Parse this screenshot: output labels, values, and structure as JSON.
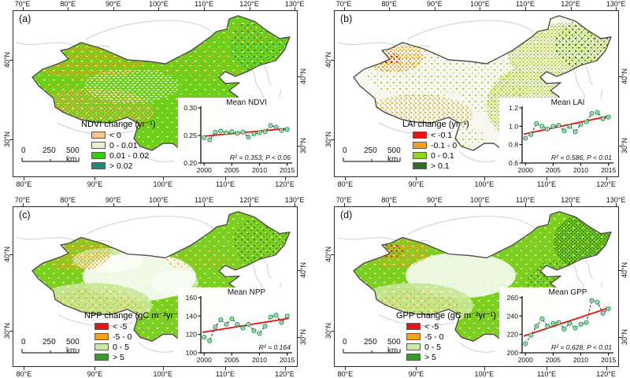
{
  "axes": {
    "top_labels": [
      "70°E",
      "80°E",
      "90°E",
      "100°E",
      "110°E",
      "120°E",
      "130°E"
    ],
    "bottom_labels": [
      "80°E",
      "90°E",
      "100°E",
      "110°E",
      "120°E"
    ],
    "left_labels": [
      "40°N",
      "30°N"
    ],
    "right_labels": [
      "40°N",
      "30°N"
    ]
  },
  "panels": [
    {
      "id": "a",
      "label": "(a)",
      "legend_title": "NDVI change (yr⁻¹)",
      "legend_items": [
        {
          "label": "< 0",
          "color": "#F4C58E"
        },
        {
          "label": "0 - 0.01",
          "color": "#EAF1CC"
        },
        {
          "label": "0.01 - 0.02",
          "color": "#3ECC12"
        },
        {
          "label": "> 0.02",
          "color": "#1B8C74"
        }
      ],
      "scalebar_labels": [
        "0",
        "250",
        "500 km"
      ]
    },
    {
      "id": "b",
      "label": "(b)",
      "legend_title": "LAI change (yr⁻¹)",
      "legend_items": [
        {
          "label": "< -0.1",
          "color": "#EE1111"
        },
        {
          "label": "-0.1 - 0",
          "color": "#F5A01B"
        },
        {
          "label": "0 - 0.1",
          "color": "#8FD622"
        },
        {
          "label": "> 0.1",
          "color": "#2F6E22"
        }
      ],
      "scalebar_labels": [
        "0",
        "250",
        "500 km"
      ]
    },
    {
      "id": "c",
      "label": "(c)",
      "legend_title": "NPP change (gC m⁻²yr⁻¹)",
      "legend_items": [
        {
          "label": "< -5",
          "color": "#EE1111"
        },
        {
          "label": "-5 - 0",
          "color": "#F5A01B"
        },
        {
          "label": "0 - 5",
          "color": "#CDEBA2"
        },
        {
          "label": "> 5",
          "color": "#3B9A2E"
        }
      ],
      "scalebar_labels": [
        "0",
        "250",
        "500 km"
      ]
    },
    {
      "id": "d",
      "label": "(d)",
      "legend_title": "GPP change (gC m⁻²yr⁻¹)",
      "legend_items": [
        {
          "label": "< -5",
          "color": "#EE1111"
        },
        {
          "label": "-5 - 0",
          "color": "#F5A01B"
        },
        {
          "label": "0 - 5",
          "color": "#CDEBA2"
        },
        {
          "label": "> 5",
          "color": "#3B9A2E"
        }
      ],
      "scalebar_labels": [
        "0",
        "250",
        "500 km"
      ]
    }
  ],
  "chart_data": [
    {
      "panel": "a",
      "type": "line",
      "title": "Mean NDVI",
      "x": [
        2000,
        2001,
        2002,
        2003,
        2004,
        2005,
        2006,
        2007,
        2008,
        2009,
        2010,
        2011,
        2012,
        2013,
        2014,
        2015
      ],
      "series": [
        {
          "name": "Mean NDVI",
          "values": [
            0.246,
            0.242,
            0.256,
            0.258,
            0.255,
            0.257,
            0.254,
            0.256,
            0.247,
            0.253,
            0.255,
            0.257,
            0.268,
            0.265,
            0.259,
            0.261
          ]
        }
      ],
      "annotation": "R² = 0.353, P < 0.05",
      "ylim": [
        0.2,
        0.3
      ],
      "yticks": [
        "0.20",
        "0.25",
        "0.30"
      ],
      "xticks": [
        2000,
        2005,
        2010,
        2015
      ],
      "trend": "linear",
      "trend_color": "#E8100C",
      "marker_color": "#1DA750",
      "grid": false,
      "legend_position": "none"
    },
    {
      "panel": "b",
      "type": "line",
      "title": "Mean LAI",
      "x": [
        2000,
        2001,
        2002,
        2003,
        2004,
        2005,
        2006,
        2007,
        2008,
        2009,
        2010,
        2011,
        2012,
        2013,
        2014,
        2015
      ],
      "series": [
        {
          "name": "Mean LAI",
          "values": [
            0.87,
            0.91,
            1.03,
            1.0,
            0.97,
            1.0,
            1.01,
            0.95,
            1.0,
            0.94,
            1.02,
            1.05,
            1.14,
            1.15,
            1.08,
            1.1
          ]
        }
      ],
      "annotation": "R² = 0.586, P < 0.01",
      "ylim": [
        0.6,
        1.2
      ],
      "yticks": [
        "0.6",
        "0.8",
        "1.0",
        "1.2"
      ],
      "xticks": [
        2000,
        2005,
        2010,
        2015
      ],
      "trend": "linear",
      "trend_color": "#E8100C",
      "marker_color": "#1DA750",
      "grid": false,
      "legend_position": "none"
    },
    {
      "panel": "c",
      "type": "line",
      "title": "Mean NPP",
      "x": [
        2000,
        2001,
        2002,
        2003,
        2004,
        2005,
        2006,
        2007,
        2008,
        2009,
        2010,
        2011,
        2012,
        2013,
        2014,
        2015
      ],
      "series": [
        {
          "name": "Mean NPP",
          "values": [
            117,
            113,
            128,
            136,
            131,
            137,
            131,
            127,
            131,
            124,
            121,
            129,
            139,
            141,
            133,
            140
          ]
        }
      ],
      "annotation": "R² = 0.164",
      "ylim": [
        100,
        160
      ],
      "yticks": [
        "100",
        "120",
        "140",
        "160"
      ],
      "xticks": [
        2000,
        2005,
        2010,
        2015
      ],
      "trend": "linear",
      "trend_color": "#E8100C",
      "marker_color": "#1DA750",
      "grid": false,
      "legend_position": "none"
    },
    {
      "panel": "d",
      "type": "line",
      "title": "Mean GPP",
      "x": [
        2000,
        2001,
        2002,
        2003,
        2004,
        2005,
        2006,
        2007,
        2008,
        2009,
        2010,
        2011,
        2012,
        2013,
        2014,
        2015
      ],
      "series": [
        {
          "name": "Mean GPP",
          "values": [
            210,
            219,
            229,
            237,
            229,
            232,
            233,
            226,
            232,
            227,
            231,
            233,
            257,
            255,
            243,
            248
          ]
        }
      ],
      "annotation": "R² = 0.628, P < 0.01",
      "ylim": [
        200,
        260
      ],
      "yticks": [
        "200",
        "220",
        "240",
        "260"
      ],
      "xticks": [
        2000,
        2005,
        2010,
        2015
      ],
      "trend": "linear",
      "trend_color": "#E8100C",
      "marker_color": "#1DA750",
      "grid": false,
      "legend_position": "none"
    }
  ]
}
